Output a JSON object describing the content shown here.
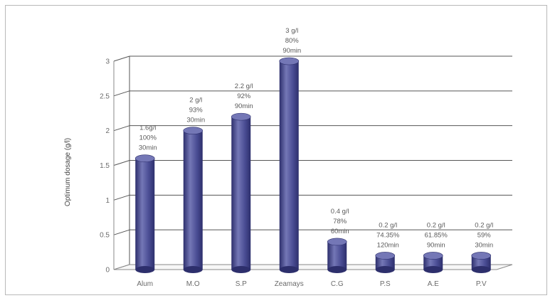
{
  "chart_data": {
    "type": "bar",
    "style": "3d-cylinder",
    "categories": [
      "Alum",
      "M.O",
      "S.P",
      "Zeamays",
      "C.G",
      "P.S",
      "A.E",
      "P.V"
    ],
    "values": [
      1.6,
      2,
      2.2,
      3,
      0.4,
      0.2,
      0.2,
      0.2
    ],
    "data_labels": [
      [
        "1.6g/l",
        "100%",
        "30min"
      ],
      [
        "2 g/l",
        "93%",
        "30min"
      ],
      [
        "2.2 g/l",
        "92%",
        "90min"
      ],
      [
        "3 g/l",
        "80%",
        "90min"
      ],
      [
        "0.4 g/l",
        "78%",
        "60min"
      ],
      [
        "0.2 g/l",
        "74.35%",
        "120min"
      ],
      [
        "0.2 g/l",
        "61.85%",
        "90min"
      ],
      [
        "0.2 g/l",
        "59%",
        "30min"
      ]
    ],
    "ylabel": "Optimum dosage (g/l)",
    "xlabel": "",
    "title": "",
    "ylim": [
      0,
      3
    ],
    "yticks": [
      "0",
      "0.5",
      "1",
      "1.5",
      "2",
      "2.5",
      "3"
    ],
    "grid": true,
    "legend": "none",
    "colors": {
      "bar": "#4a4d94",
      "bar_dark": "#2d2f6c",
      "bar_light": "#7477b6",
      "grid": "#555555",
      "axis": "#8a8a8a"
    }
  }
}
